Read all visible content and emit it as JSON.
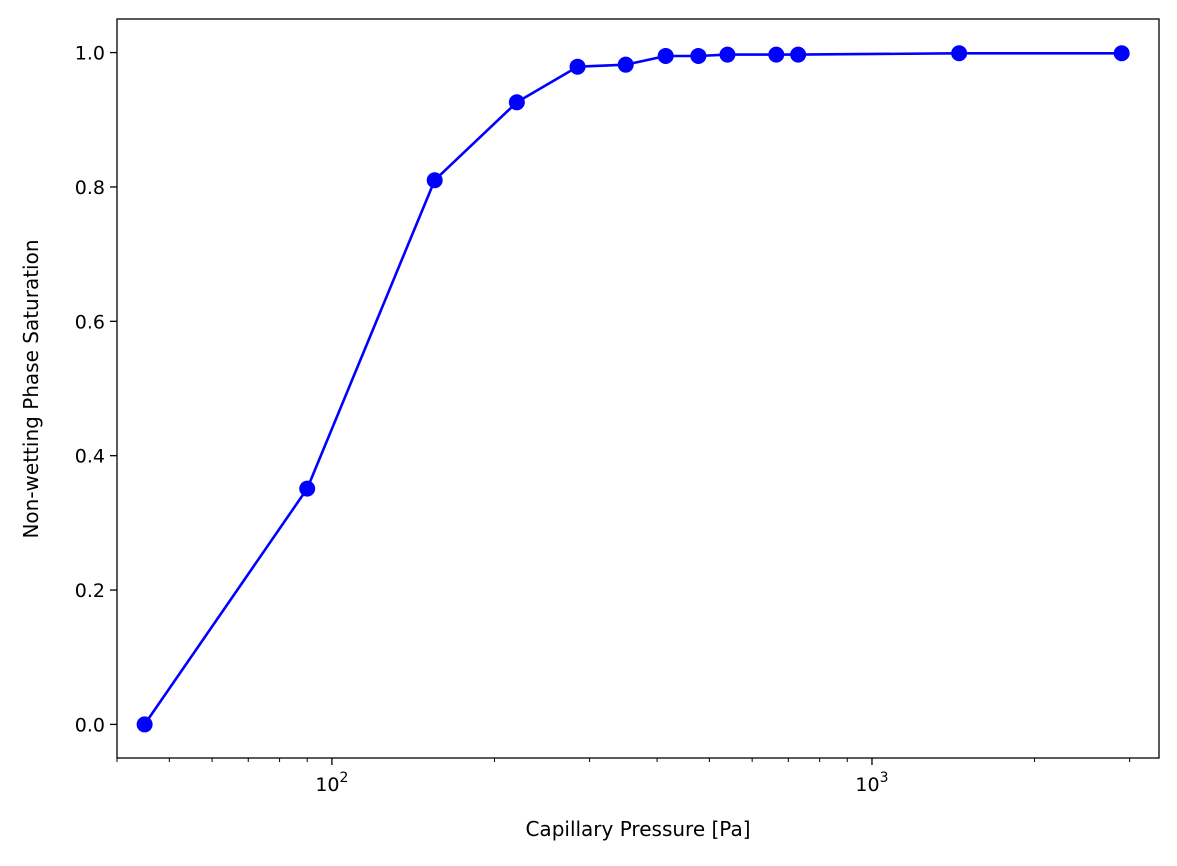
{
  "chart_data": {
    "type": "line",
    "title": "",
    "xlabel": "Capillary Pressure [Pa]",
    "ylabel": "Non-wetting Phase Saturation",
    "xscale": "log",
    "xlim": [
      40,
      3400
    ],
    "ylim": [
      -0.05,
      1.05
    ],
    "grid": false,
    "legend": "none",
    "xticks": [
      {
        "value": 100,
        "base": "10",
        "exp": "2"
      },
      {
        "value": 1000,
        "base": "10",
        "exp": "3"
      }
    ],
    "yticks": [
      {
        "value": 0.0,
        "label": "0.0"
      },
      {
        "value": 0.2,
        "label": "0.2"
      },
      {
        "value": 0.4,
        "label": "0.4"
      },
      {
        "value": 0.6,
        "label": "0.6"
      },
      {
        "value": 0.8,
        "label": "0.8"
      },
      {
        "value": 1.0,
        "label": "1.0"
      }
    ],
    "series": [
      {
        "color": "#0000ff",
        "marker": "circle",
        "x": [
          45,
          90,
          155,
          220,
          285,
          350,
          415,
          477,
          540,
          665,
          730,
          1450,
          2900
        ],
        "y": [
          0.0,
          0.351,
          0.81,
          0.926,
          0.979,
          0.982,
          0.995,
          0.995,
          0.997,
          0.997,
          0.997,
          0.999,
          0.999
        ]
      }
    ]
  }
}
